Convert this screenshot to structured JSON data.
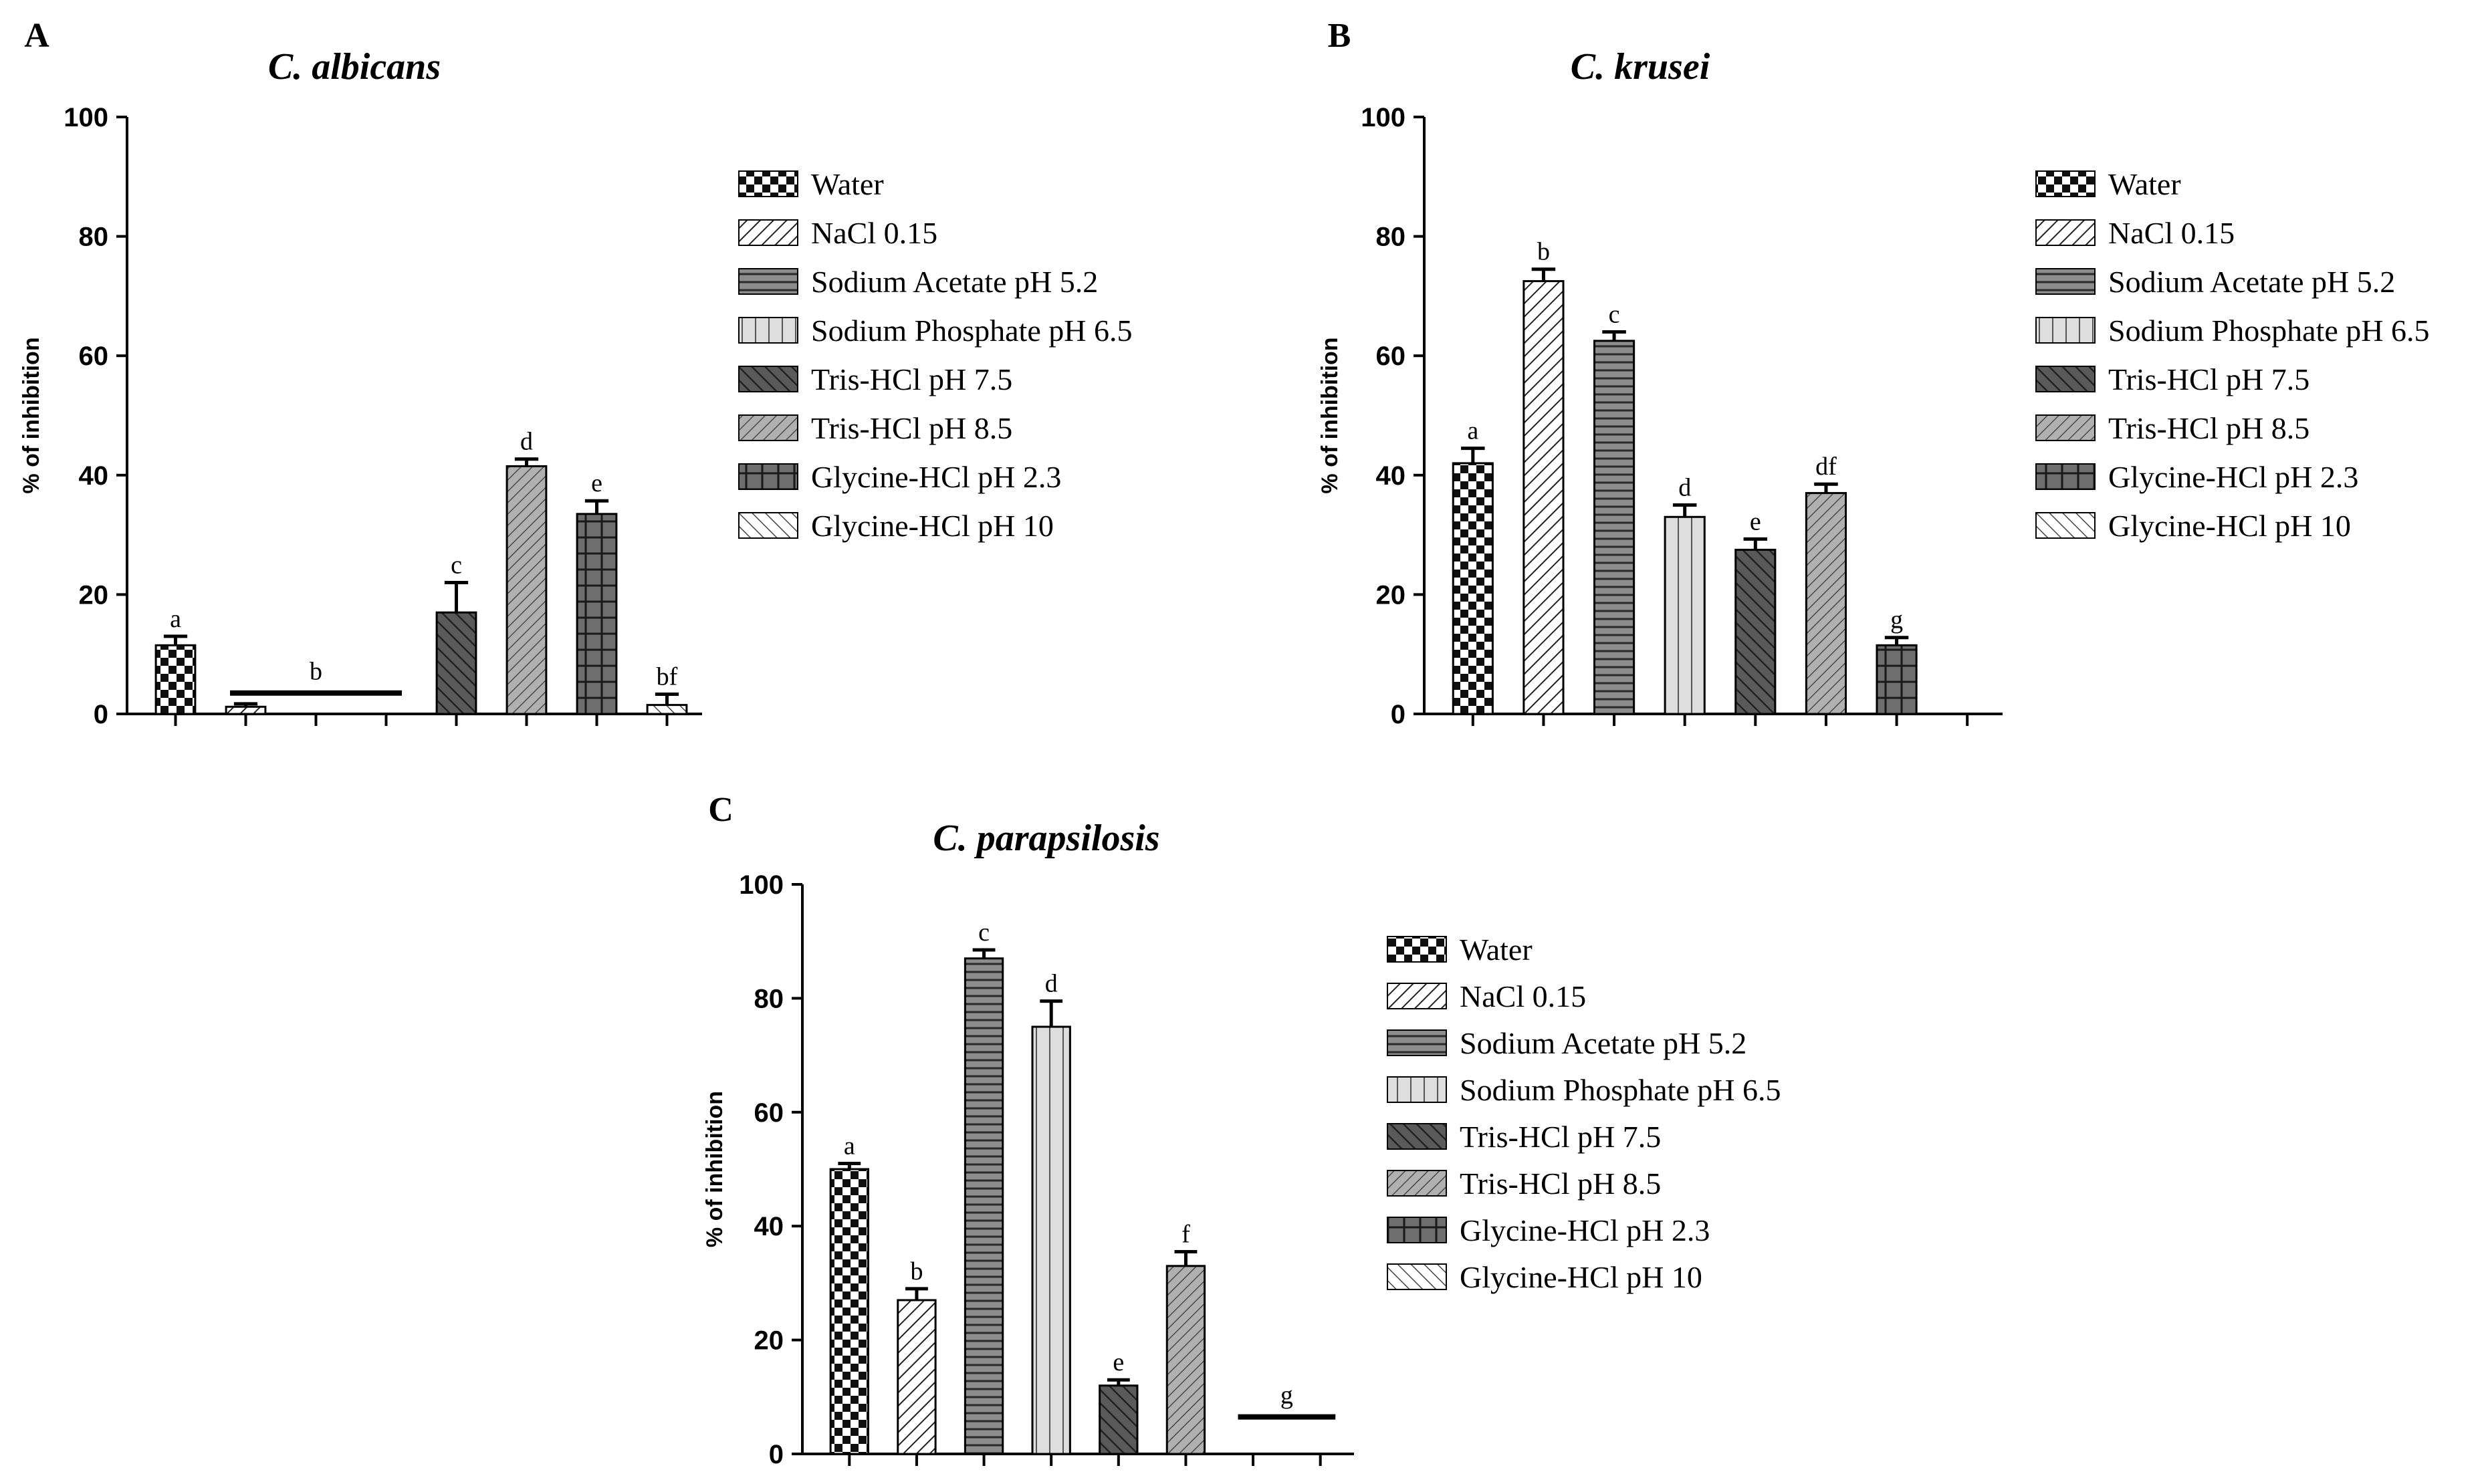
{
  "legend_entries": [
    "Water",
    "NaCl 0.15",
    "Sodium Acetate pH 5.2",
    "Sodium Phosphate pH 6.5",
    "Tris-HCl pH 7.5",
    "Tris-HCl pH 8.5",
    "Glycine-HCl pH 2.3",
    "Glycine-HCl pH 10"
  ],
  "chart_data": [
    {
      "panel": "A",
      "type": "bar",
      "title": "C. albicans",
      "ylabel": "% of inhibition",
      "ylim": [
        0,
        100
      ],
      "yticks": [
        "0",
        "20",
        "40",
        "60",
        "80",
        "100"
      ],
      "categories": [
        "Water",
        "NaCl 0.15",
        "Sodium Acetate pH 5.2",
        "Sodium Phosphate pH 6.5",
        "Tris-HCl pH 7.5",
        "Tris-HCl pH 8.5",
        "Glycine-HCl pH 2.3",
        "Glycine-HCl pH 10"
      ],
      "values": [
        11.5,
        1.2,
        0,
        0,
        17,
        41.5,
        33.5,
        1.5
      ],
      "errors": [
        1.5,
        0.5,
        0,
        0,
        5,
        1.2,
        2.2,
        1.8
      ],
      "labels": [
        "a",
        "",
        "",
        "",
        "c",
        "d",
        "e",
        "bf"
      ],
      "group_lines": [
        {
          "from": 1,
          "to": 3,
          "y": 3.5,
          "label": "b"
        }
      ]
    },
    {
      "panel": "B",
      "type": "bar",
      "title": "C. krusei",
      "ylabel": "% of inhibition",
      "ylim": [
        0,
        100
      ],
      "yticks": [
        "0",
        "20",
        "40",
        "60",
        "80",
        "100"
      ],
      "categories": [
        "Water",
        "NaCl 0.15",
        "Sodium Acetate pH 5.2",
        "Sodium Phosphate pH 6.5",
        "Tris-HCl pH 7.5",
        "Tris-HCl pH 8.5",
        "Glycine-HCl pH 2.3",
        "Glycine-HCl pH 10"
      ],
      "values": [
        42,
        72.5,
        62.5,
        33,
        27.5,
        37,
        11.5,
        0
      ],
      "errors": [
        2.5,
        2,
        1.5,
        2,
        1.8,
        1.5,
        1.3,
        0
      ],
      "labels": [
        "a",
        "b",
        "c",
        "d",
        "e",
        "df",
        "g",
        ""
      ],
      "group_lines": []
    },
    {
      "panel": "C",
      "type": "bar",
      "title": "C. parapsilosis",
      "ylabel": "% of inhibition",
      "ylim": [
        0,
        100
      ],
      "yticks": [
        "0",
        "20",
        "40",
        "60",
        "80",
        "100"
      ],
      "categories": [
        "Water",
        "NaCl 0.15",
        "Sodium Acetate pH 5.2",
        "Sodium Phosphate pH 6.5",
        "Tris-HCl pH 7.5",
        "Tris-HCl pH 8.5",
        "Glycine-HCl pH 2.3",
        "Glycine-HCl pH 10"
      ],
      "values": [
        50,
        27,
        87,
        75,
        12,
        33,
        0,
        0
      ],
      "errors": [
        1,
        2,
        1.5,
        4.5,
        1,
        2.5,
        0,
        0
      ],
      "labels": [
        "a",
        "b",
        "c",
        "d",
        "e",
        "f",
        "",
        ""
      ],
      "group_lines": [
        {
          "from": 6,
          "to": 7,
          "y": 6.5,
          "label": "g"
        }
      ]
    }
  ]
}
